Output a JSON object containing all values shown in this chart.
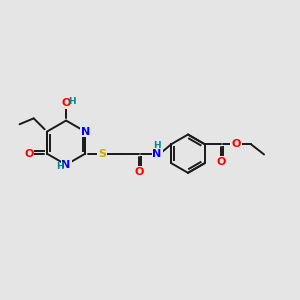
{
  "bg_color": "#e5e5e5",
  "bond_color": "#1a1a1a",
  "bond_width": 1.4,
  "atom_colors": {
    "N": "#0000ff",
    "O": "#ff0000",
    "S": "#ccaa00",
    "H": "#008888"
  },
  "font_size": 8.0,
  "fig_size": [
    3.0,
    3.0
  ],
  "dpi": 100
}
